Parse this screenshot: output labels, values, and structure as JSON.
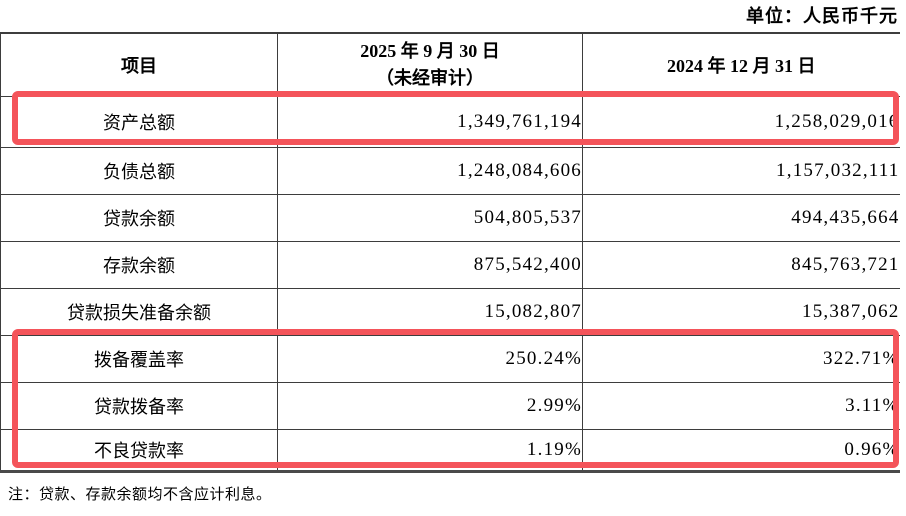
{
  "unit_label": "单位：人民币千元",
  "note": "注：贷款、存款余额均不含应计利息。",
  "colors": {
    "highlight": "#f4545a",
    "line": "#3d3d3d",
    "line-heavy": "#4a4a4a"
  },
  "table": {
    "headers": {
      "item": "项目",
      "date_2025_line1": "2025 年 9 月 30 日",
      "date_2025_line2": "（未经审计）",
      "date_2024": "2024 年 12 月 31 日"
    },
    "rows": [
      {
        "label": "资产总额",
        "v2025": "1,349,761,194",
        "v2024": "1,258,029,016",
        "highlighted": true
      },
      {
        "label": "负债总额",
        "v2025": "1,248,084,606",
        "v2024": "1,157,032,111",
        "highlighted": false
      },
      {
        "label": "贷款余额",
        "v2025": "504,805,537",
        "v2024": "494,435,664",
        "highlighted": false
      },
      {
        "label": "存款余额",
        "v2025": "875,542,400",
        "v2024": "845,763,721",
        "highlighted": false
      },
      {
        "label": "贷款损失准备余额",
        "v2025": "15,082,807",
        "v2024": "15,387,062",
        "highlighted": false
      },
      {
        "label": "拨备覆盖率",
        "v2025": "250.24%",
        "v2024": "322.71%",
        "highlighted": true
      },
      {
        "label": "贷款拨备率",
        "v2025": "2.99%",
        "v2024": "3.11%",
        "highlighted": true
      },
      {
        "label": "不良贷款率",
        "v2025": "1.19%",
        "v2024": "0.96%",
        "highlighted": true
      }
    ]
  }
}
